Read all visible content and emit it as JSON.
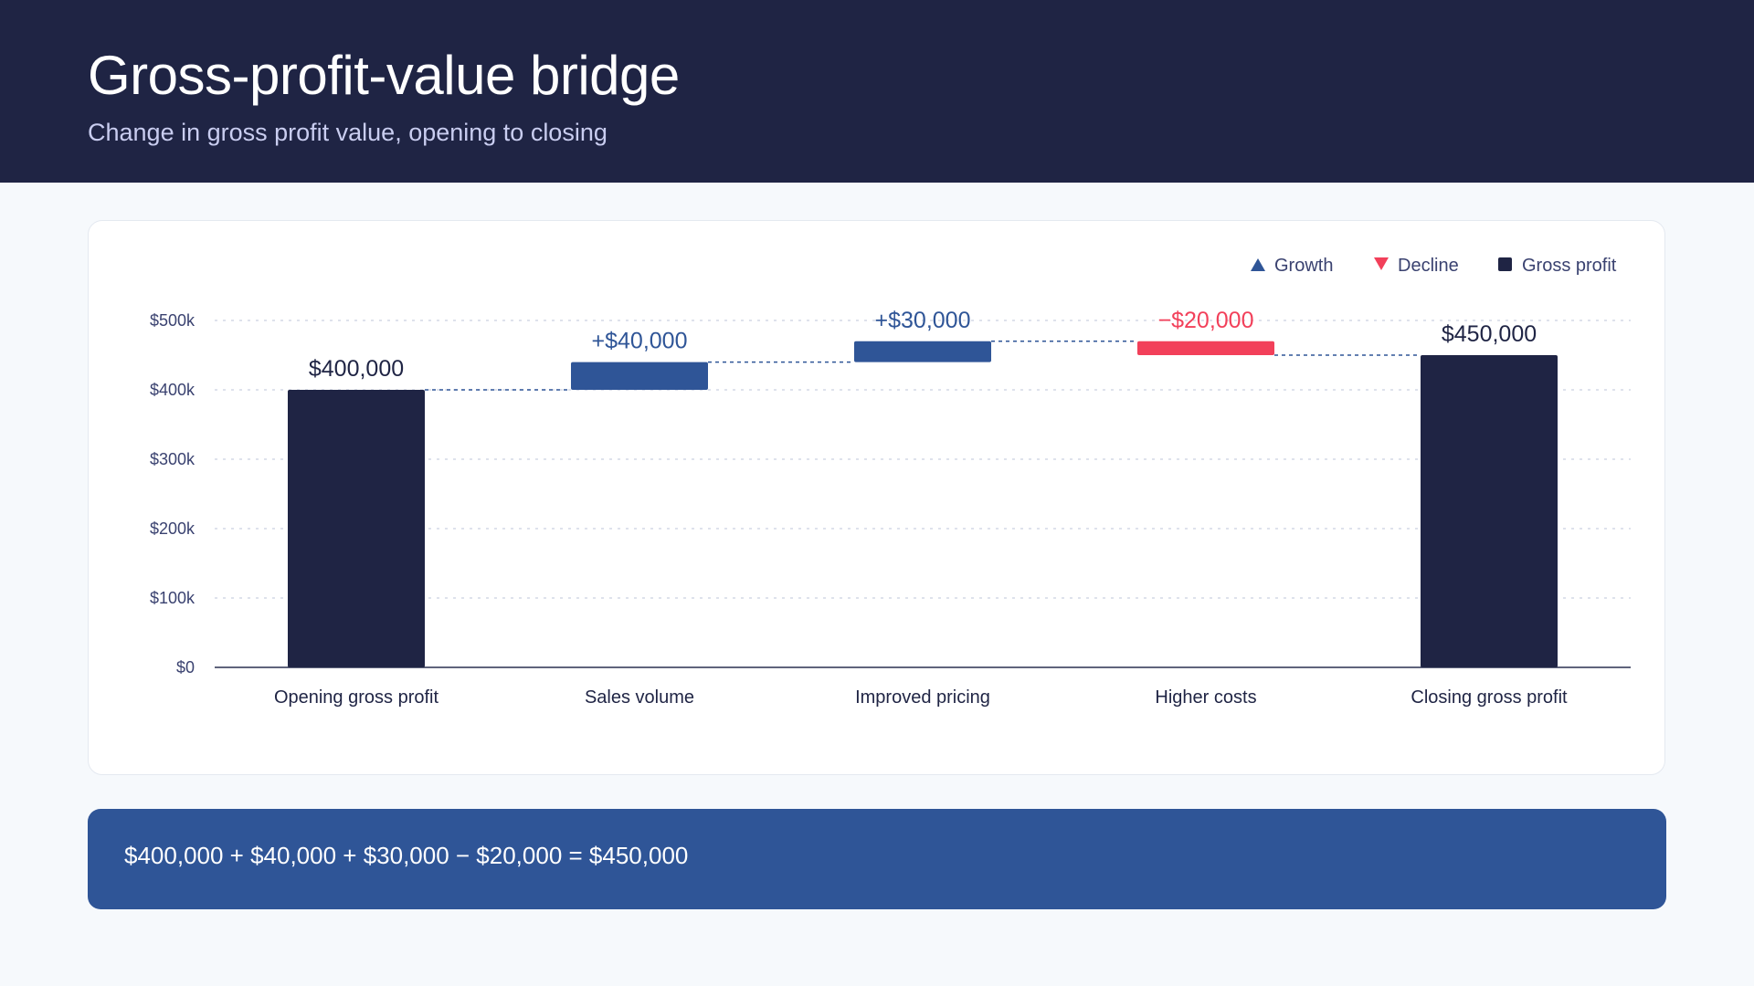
{
  "header": {
    "title": "Gross-profit-value bridge",
    "subtitle": "Change in gross profit value, opening to closing"
  },
  "colors": {
    "header_bg": "#1f2444",
    "total": "#1f2444",
    "growth": "#2f5597",
    "decline": "#f2405a",
    "equation_bg": "#2f5597"
  },
  "chart_data": {
    "type": "waterfall",
    "categories": [
      "Opening gross profit",
      "Sales volume",
      "Improved pricing",
      "Higher costs",
      "Closing gross profit"
    ],
    "values": [
      400000,
      40000,
      30000,
      -20000,
      450000
    ],
    "kinds": [
      "total",
      "growth",
      "growth",
      "decline",
      "total"
    ],
    "value_labels": [
      "$400,000",
      "+$40,000",
      "+$30,000",
      "−$20,000",
      "$450,000"
    ],
    "ylim": [
      0,
      500000
    ],
    "yticks": [
      0,
      100000,
      200000,
      300000,
      400000,
      500000
    ],
    "ytick_labels": [
      "$0",
      "$100k",
      "$200k",
      "$300k",
      "$400k",
      "$500k"
    ],
    "grid": true,
    "legend_position": "top-right",
    "legend": [
      {
        "label": "Growth",
        "kind": "growth",
        "icon": "triangle-up-icon"
      },
      {
        "label": "Decline",
        "kind": "decline",
        "icon": "triangle-down-icon"
      },
      {
        "label": "Gross profit",
        "kind": "total",
        "icon": "square-icon"
      }
    ]
  },
  "equation": {
    "text": "$400,000 + $40,000 + $30,000 − $20,000 = $450,000"
  }
}
